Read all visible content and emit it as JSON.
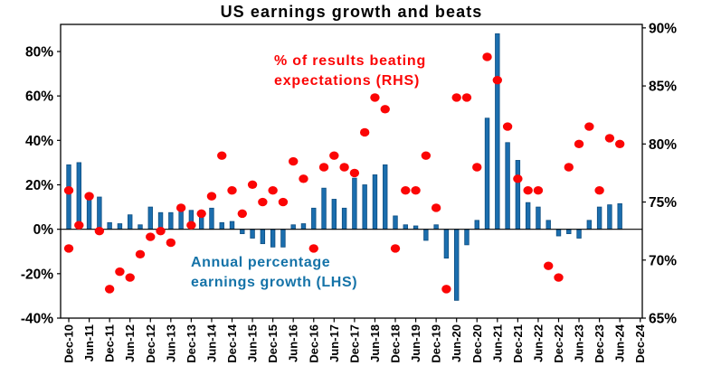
{
  "title": "US earnings growth and beats",
  "annotations": {
    "beats_line1": "% of results beating",
    "beats_line2": "expectations (RHS)",
    "growth_line1": "Annual percentage",
    "growth_line2": "earnings growth (LHS)"
  },
  "colors": {
    "bar_fill": "#1b6eae",
    "bar_stroke": "#0f4e80",
    "dot_fill": "#fb0505",
    "axis": "#000000",
    "beats_text": "#fb0505",
    "growth_text": "#1573a8"
  },
  "chart_data": {
    "type": "bar",
    "subtype": "dual-axis bar + scatter",
    "grid": "off",
    "legend_position": "none (in-plot text annotations)",
    "categories": [
      "Dec-10",
      "Mar-11",
      "Jun-11",
      "Sep-11",
      "Dec-11",
      "Mar-12",
      "Jun-12",
      "Sep-12",
      "Dec-12",
      "Mar-13",
      "Jun-13",
      "Sep-13",
      "Dec-13",
      "Mar-14",
      "Jun-14",
      "Sep-14",
      "Dec-14",
      "Mar-15",
      "Jun-15",
      "Sep-15",
      "Dec-15",
      "Mar-16",
      "Jun-16",
      "Sep-16",
      "Dec-16",
      "Mar-17",
      "Jun-17",
      "Sep-17",
      "Dec-17",
      "Mar-18",
      "Jun-18",
      "Sep-18",
      "Dec-18",
      "Mar-19",
      "Jun-19",
      "Sep-19",
      "Dec-19",
      "Mar-20",
      "Jun-20",
      "Sep-20",
      "Dec-20",
      "Mar-21",
      "Jun-21",
      "Sep-21",
      "Dec-21",
      "Mar-22",
      "Jun-22",
      "Sep-22",
      "Dec-22",
      "Mar-23",
      "Jun-23",
      "Sep-23",
      "Dec-23",
      "Mar-24",
      "Jun-24",
      "Sep-24",
      "Dec-24"
    ],
    "x_tick_labels": [
      "Dec-10",
      "Jun-11",
      "Dec-11",
      "Jun-12",
      "Dec-12",
      "Jun-13",
      "Dec-13",
      "Jun-14",
      "Dec-14",
      "Jun-15",
      "Dec-15",
      "Jun-16",
      "Dec-16",
      "Jun-17",
      "Dec-17",
      "Jun-18",
      "Dec-18",
      "Jun-19",
      "Dec-19",
      "Jun-20",
      "Dec-20",
      "Jun-21",
      "Dec-21",
      "Jun-22",
      "Dec-22",
      "Jun-23",
      "Dec-23",
      "Jun-24",
      "Dec-24"
    ],
    "series": [
      {
        "name": "Annual percentage earnings growth (LHS)",
        "type": "bar",
        "axis": "left",
        "values": [
          29,
          30,
          15,
          14.5,
          3,
          2.5,
          6.5,
          2,
          10,
          7.5,
          7.5,
          10,
          8.5,
          7,
          9.5,
          3,
          3.5,
          -2,
          -4,
          -6.5,
          -8,
          -8,
          2,
          2.5,
          9.5,
          18.5,
          13.5,
          9.5,
          23,
          20,
          24.5,
          29,
          6,
          2,
          1.5,
          -5,
          2,
          -13,
          -32,
          -7,
          4,
          50,
          88,
          39,
          31,
          12,
          10,
          4,
          -3,
          -2,
          -4,
          4,
          10,
          11,
          11.5,
          null,
          null
        ]
      },
      {
        "name": "% of results beating expectations (RHS)",
        "type": "scatter",
        "axis": "right",
        "values": [
          76,
          73,
          75.5,
          72.5,
          67.5,
          69,
          68.5,
          70.5,
          72,
          72.5,
          71.5,
          74.5,
          73,
          74,
          75.5,
          79,
          76,
          74,
          76.5,
          75,
          76,
          75,
          78.5,
          77,
          71,
          78,
          79,
          78,
          77.5,
          81,
          84,
          83,
          71,
          76,
          76,
          79,
          74.5,
          67.5,
          84,
          84,
          78,
          87.5,
          85.5,
          81.5,
          77,
          76,
          76,
          69.5,
          68.5,
          78,
          80,
          81.5,
          76,
          80.5,
          80,
          null,
          null
        ],
        "pre_point": {
          "label": "Sep-10",
          "value": 71,
          "note": "marker drawn at left edge under the Dec-10 marker"
        }
      }
    ],
    "left_axis": {
      "tick_labels": [
        "80%",
        "60%",
        "40%",
        "20%",
        "0%",
        "-20%",
        "-40%"
      ],
      "tick_values": [
        80,
        60,
        40,
        20,
        0,
        -20,
        -40
      ],
      "min": -40,
      "max": 92.2
    },
    "right_axis": {
      "tick_labels": [
        "90%",
        "85%",
        "80%",
        "75%",
        "70%",
        "65%"
      ],
      "tick_values": [
        90,
        85,
        80,
        75,
        70,
        65
      ],
      "min": 65,
      "max": 90.3
    },
    "xlabel": "",
    "ylabel_left": "Annual percentage earnings growth (LHS)",
    "ylabel_right": "% of results beating expectations (RHS)"
  }
}
